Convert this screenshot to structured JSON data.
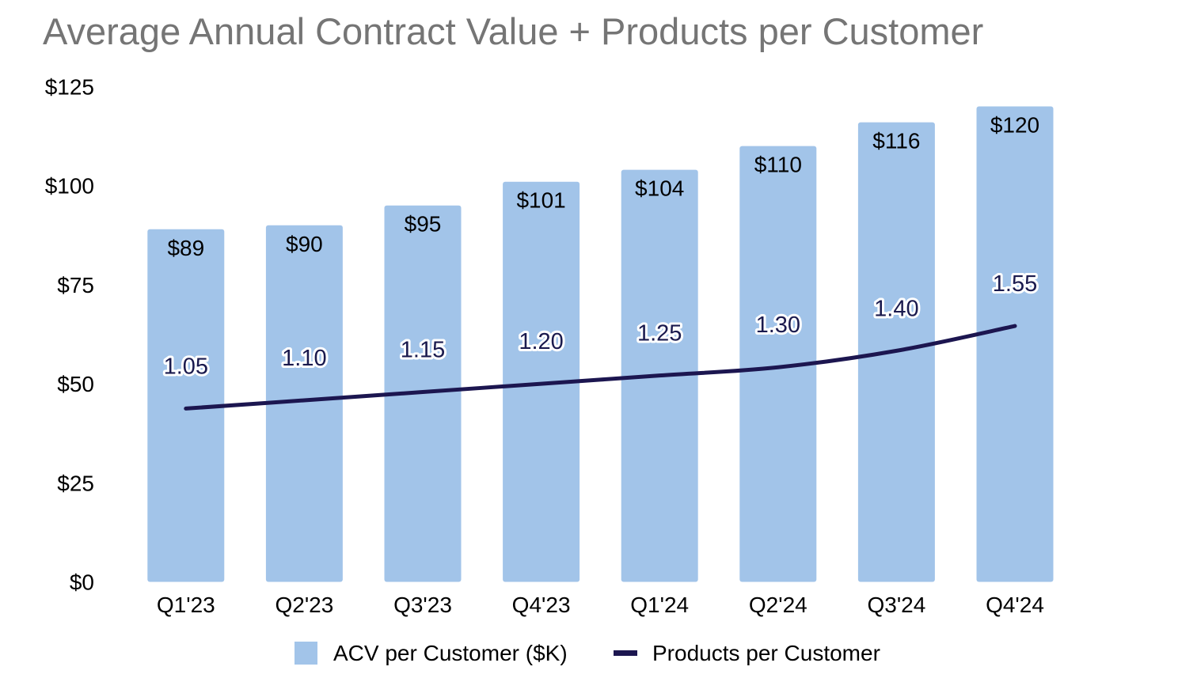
{
  "chart_data": {
    "type": "bar",
    "title": "Average Annual Contract Value + Products per Customer",
    "categories": [
      "Q1'23",
      "Q2'23",
      "Q3'23",
      "Q4'23",
      "Q1'24",
      "Q2'24",
      "Q3'24",
      "Q4'24"
    ],
    "series": [
      {
        "name": "ACV per Customer ($K)",
        "type": "bar",
        "axis": "left",
        "color": "#a2c4e9",
        "values": [
          89,
          90,
          95,
          101,
          104,
          110,
          116,
          120
        ],
        "labels": [
          "$89",
          "$90",
          "$95",
          "$101",
          "$104",
          "$110",
          "$116",
          "$120"
        ]
      },
      {
        "name": "Products per Customer",
        "type": "line",
        "axis": "right-hidden",
        "color": "#1c1650",
        "values": [
          1.05,
          1.1,
          1.15,
          1.2,
          1.25,
          1.3,
          1.4,
          1.55
        ],
        "labels": [
          "1.05",
          "1.10",
          "1.15",
          "1.20",
          "1.25",
          "1.30",
          "1.40",
          "1.55"
        ]
      }
    ],
    "y_axis": {
      "min": 0,
      "max": 125,
      "ticks": [
        0,
        25,
        50,
        75,
        100,
        125
      ],
      "tick_labels": [
        "$0",
        "$25",
        "$50",
        "$75",
        "$100",
        "$125"
      ]
    },
    "secondary_axis": {
      "min": 0,
      "max": 3,
      "visible": false
    },
    "grid": false,
    "legend": {
      "position": "bottom-center",
      "entries": [
        "ACV per Customer ($K)",
        "Products per Customer"
      ]
    },
    "xlabel": "",
    "ylabel": ""
  }
}
